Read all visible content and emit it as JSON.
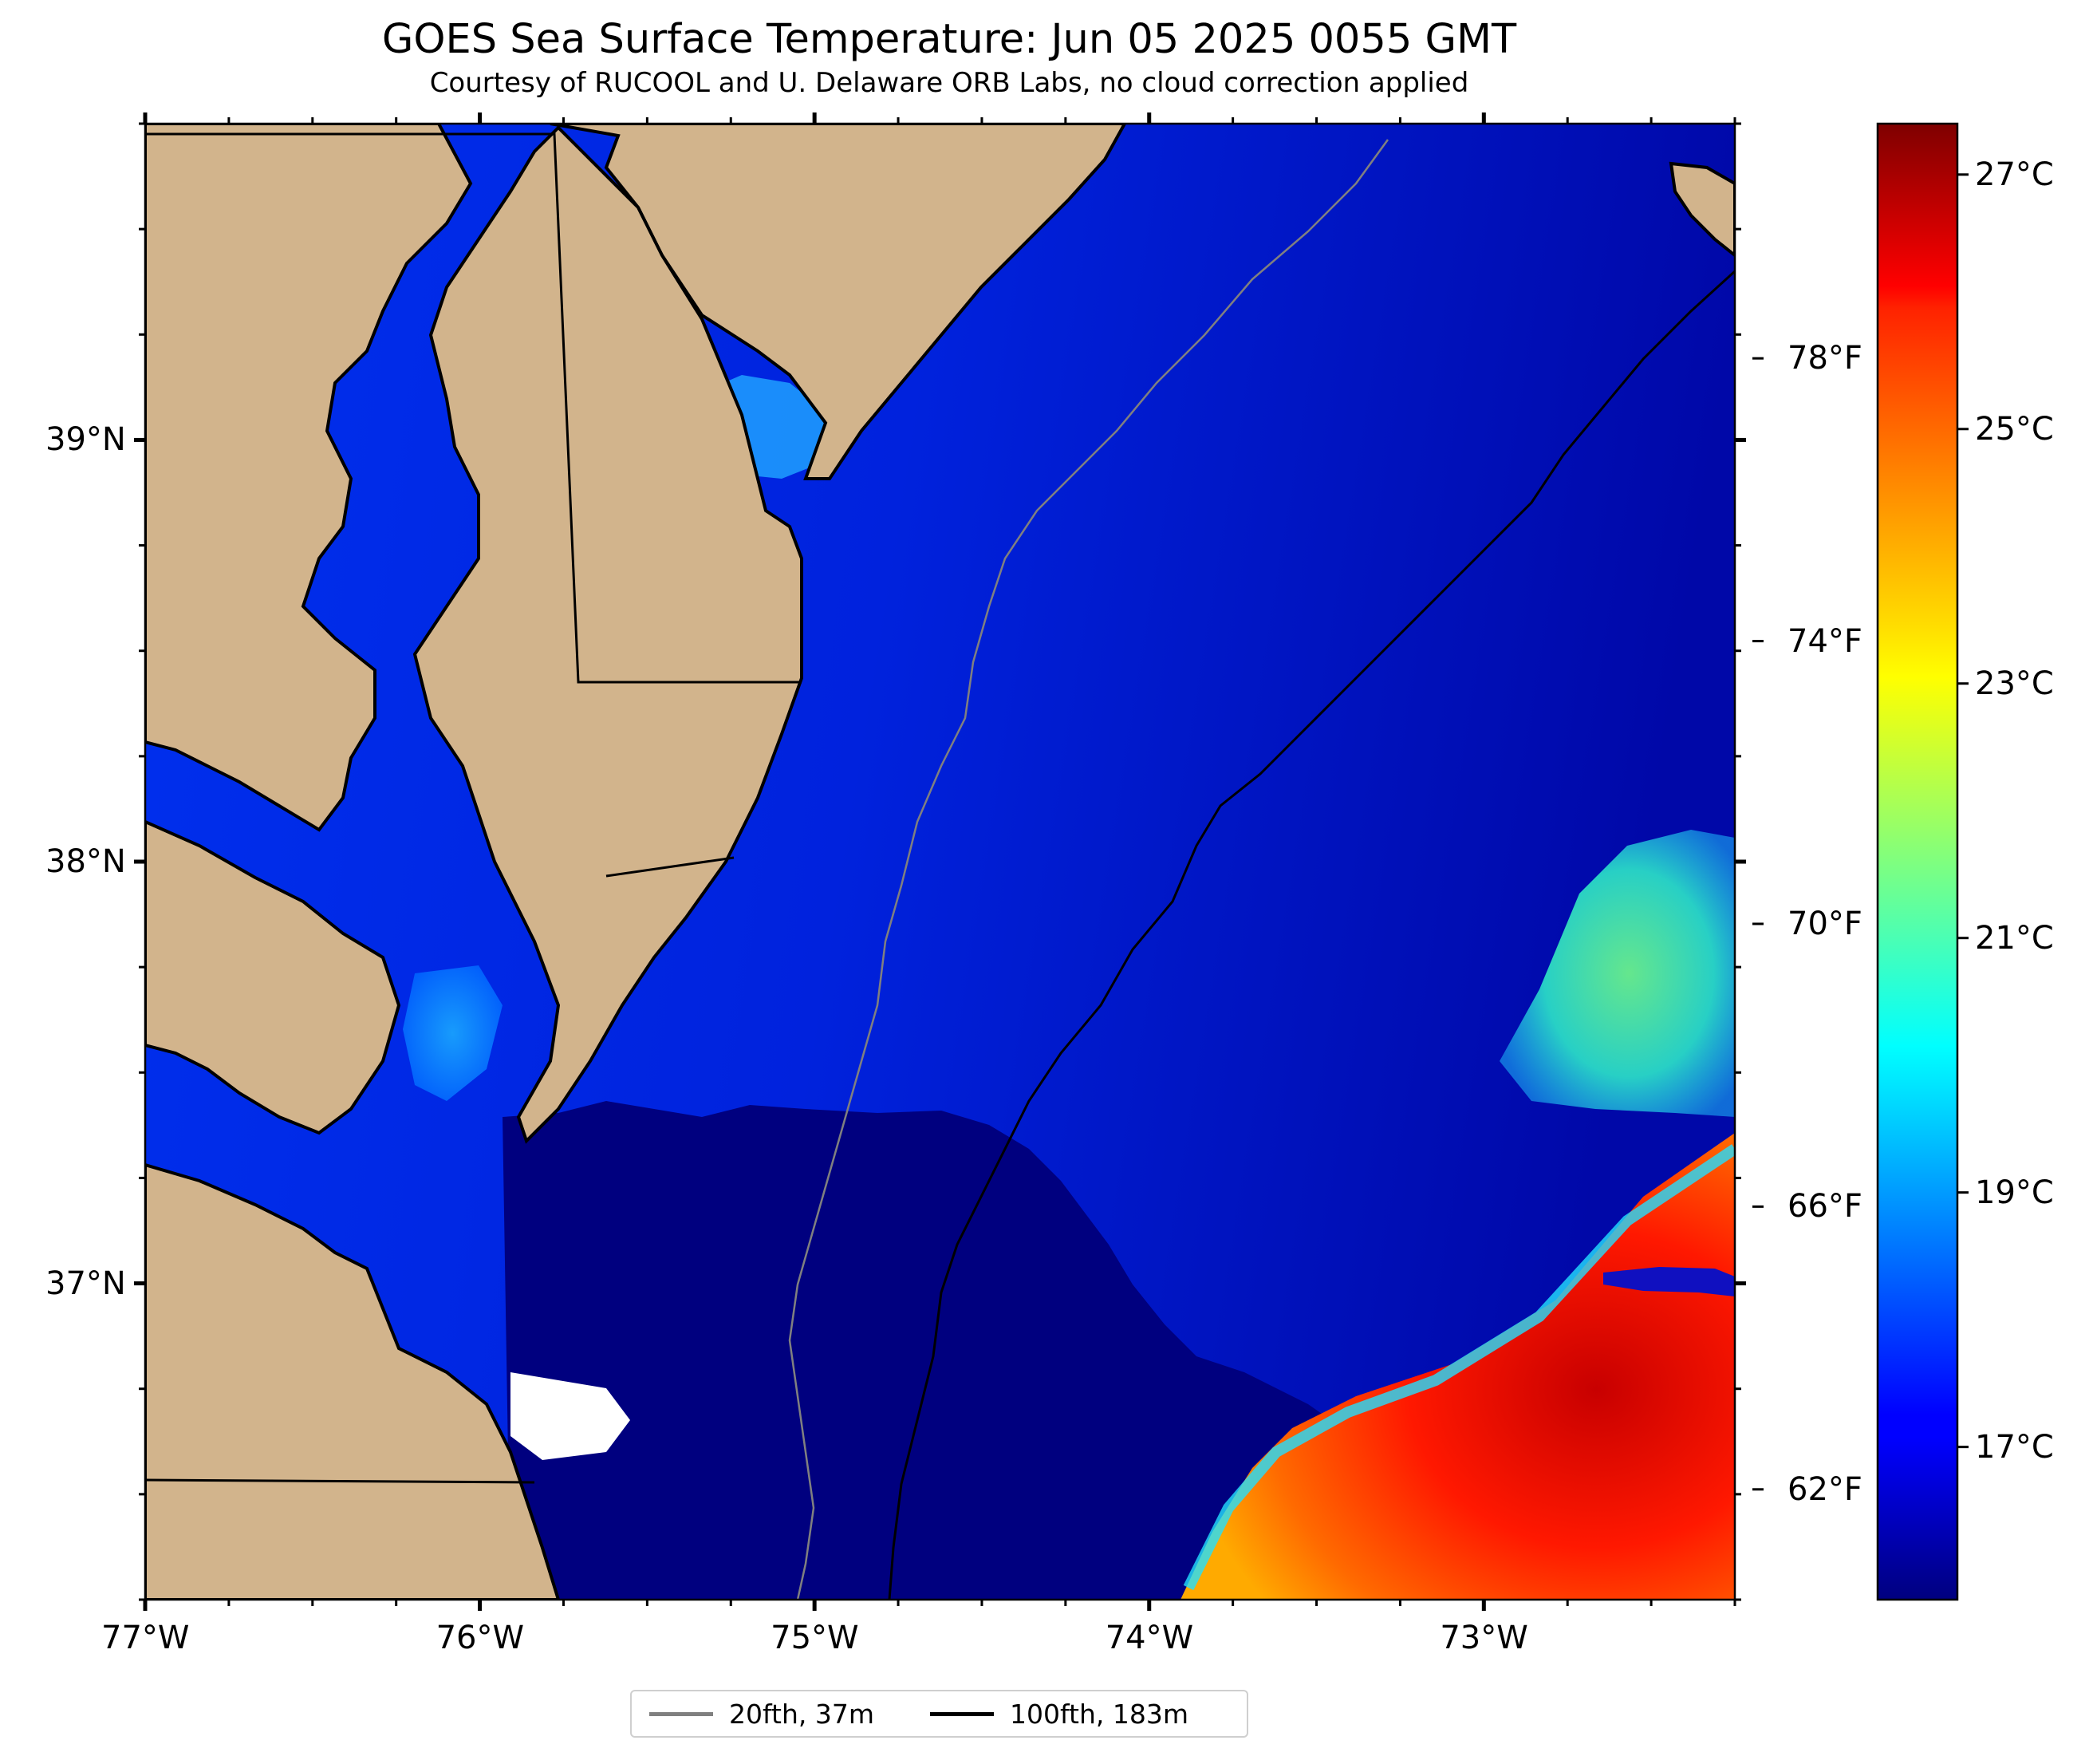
{
  "title": "GOES Sea Surface Temperature: Jun 05 2025 0055 GMT",
  "subtitle": "Courtesy of RUCOOL and U. Delaware ORB Labs, no cloud correction applied",
  "map": {
    "lon_range": [
      -77.0,
      -72.25
    ],
    "lat_range": [
      36.25,
      39.75
    ],
    "lon_ticks": [
      "77°W",
      "76°W",
      "75°W",
      "74°W",
      "73°W"
    ],
    "lat_ticks": [
      "39°N",
      "38°N",
      "37°N"
    ],
    "colors": {
      "land": "#d2b48c",
      "no_data": "#ffffff",
      "coastline": "#000000",
      "isobath_20fth": "#808080",
      "isobath_100fth": "#000000"
    }
  },
  "colorbar": {
    "colormap": "jet",
    "range_c": [
      15.8,
      27.4
    ],
    "celsius_ticks": [
      "17°C",
      "19°C",
      "21°C",
      "23°C",
      "25°C",
      "27°C"
    ],
    "fahrenheit_ticks": [
      "62°F",
      "66°F",
      "70°F",
      "74°F",
      "78°F"
    ]
  },
  "legend": {
    "items": [
      {
        "label": "20fth, 37m",
        "color": "#808080"
      },
      {
        "label": "100fth, 183m",
        "color": "#000000"
      }
    ]
  }
}
